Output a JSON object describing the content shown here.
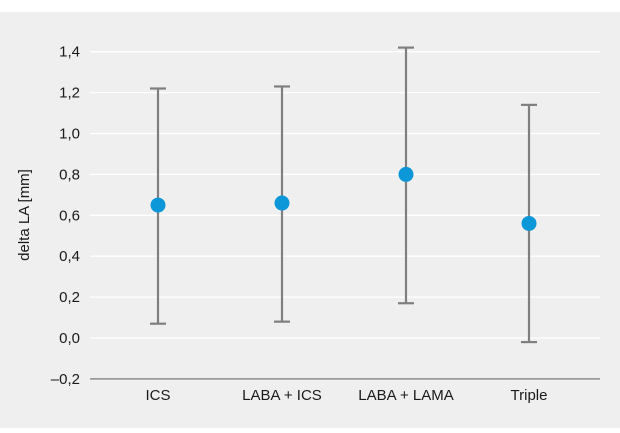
{
  "chart_data": {
    "type": "errorbar",
    "title": "",
    "xlabel": "",
    "ylabel": "delta LA [mm]",
    "categories": [
      "ICS",
      "LABA + ICS",
      "LABA + LAMA",
      "Triple"
    ],
    "series": [
      {
        "values": [
          0.65,
          0.66,
          0.8,
          0.56
        ],
        "lower": [
          0.07,
          0.08,
          0.17,
          -0.02
        ],
        "upper": [
          1.22,
          1.23,
          1.42,
          1.14
        ]
      }
    ],
    "ylim": [
      -0.2,
      1.45
    ],
    "yticks": [
      -0.2,
      0.0,
      0.2,
      0.4,
      0.6,
      0.8,
      1.0,
      1.2,
      1.4
    ],
    "ytick_labels": [
      "–0,2",
      "0,0",
      "0,2",
      "0,4",
      "0,6",
      "0,8",
      "1,0",
      "1,2",
      "1,4"
    ],
    "grid": true,
    "legend": "none",
    "colors": {
      "background": "#efefef",
      "grid": "#ffffff",
      "errorbar": "#7f7f7f",
      "marker": "#0b97d8",
      "axis": "#8c8c8c"
    }
  }
}
